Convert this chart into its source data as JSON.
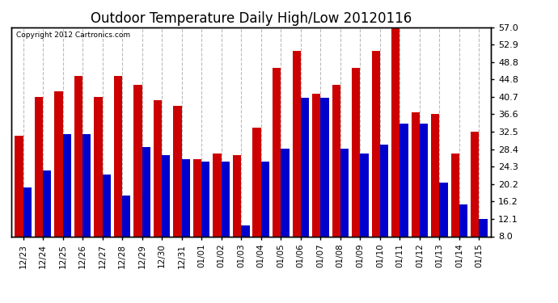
{
  "title": "Outdoor Temperature Daily High/Low 20120116",
  "copyright": "Copyright 2012 Cartronics.com",
  "dates": [
    "12/23",
    "12/24",
    "12/25",
    "12/26",
    "12/27",
    "12/28",
    "12/29",
    "12/30",
    "12/31",
    "01/01",
    "01/02",
    "01/03",
    "01/04",
    "01/05",
    "01/06",
    "01/07",
    "01/08",
    "01/09",
    "01/10",
    "01/11",
    "01/12",
    "01/13",
    "01/14",
    "01/15"
  ],
  "highs": [
    31.5,
    40.7,
    42.0,
    45.5,
    40.7,
    45.5,
    43.5,
    40.0,
    38.5,
    26.0,
    27.5,
    27.0,
    33.5,
    47.5,
    51.5,
    41.5,
    43.5,
    47.5,
    51.5,
    57.0,
    37.0,
    36.6,
    27.5,
    32.5
  ],
  "lows": [
    19.5,
    23.5,
    32.0,
    32.0,
    22.5,
    17.5,
    29.0,
    27.0,
    26.0,
    25.5,
    25.5,
    10.5,
    25.5,
    28.5,
    40.5,
    40.5,
    28.5,
    27.5,
    29.5,
    34.5,
    34.5,
    20.5,
    15.5,
    12.0
  ],
  "ylim": [
    8.0,
    57.0
  ],
  "yticks": [
    8.0,
    12.1,
    16.2,
    20.2,
    24.3,
    28.4,
    32.5,
    36.6,
    40.7,
    44.8,
    48.8,
    52.9,
    57.0
  ],
  "high_color": "#cc0000",
  "low_color": "#0000cc",
  "bg_color": "#ffffff",
  "grid_color": "#bbbbbb",
  "title_fontsize": 12,
  "bar_width": 0.42,
  "ymin": 8.0
}
